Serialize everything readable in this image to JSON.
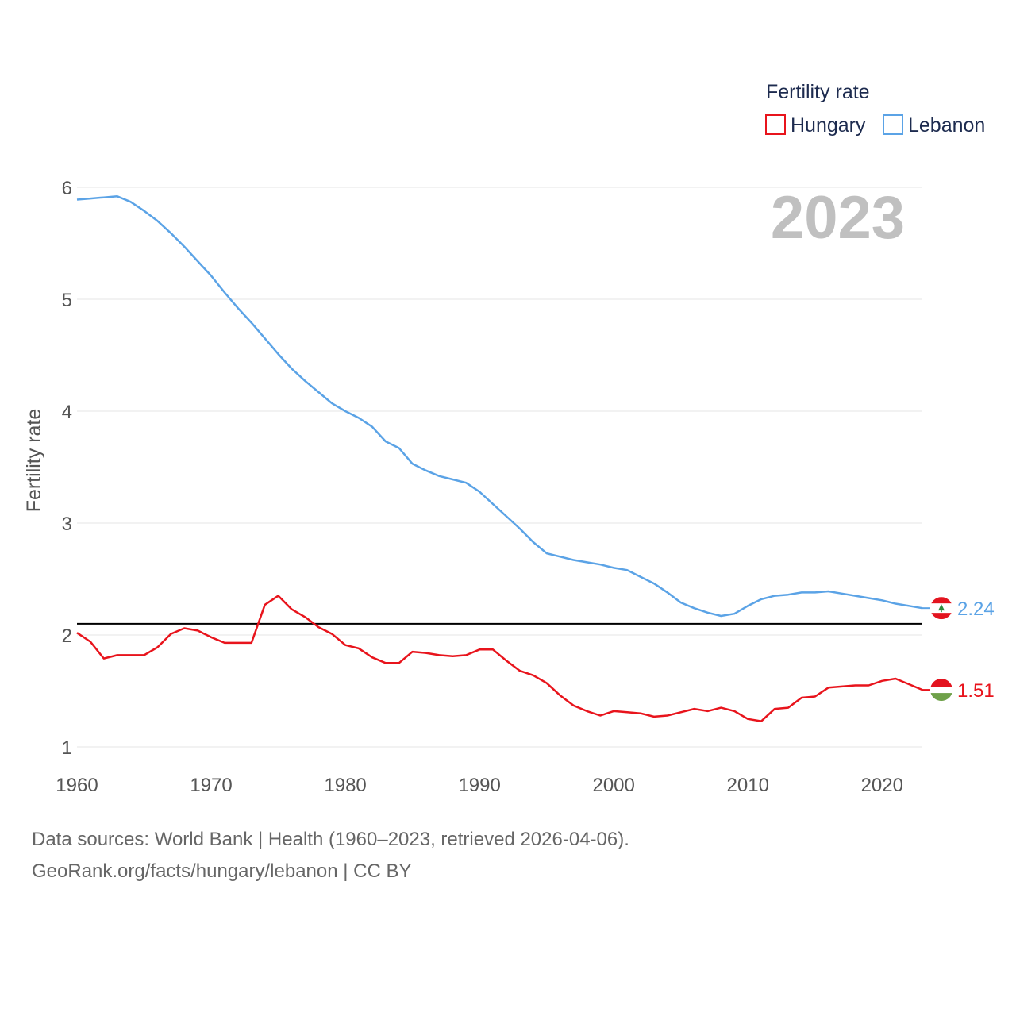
{
  "legend": {
    "title": "Fertility rate",
    "items": [
      {
        "label": "Hungary",
        "color": "#e8141c"
      },
      {
        "label": "Lebanon",
        "color": "#5ba3e6"
      }
    ]
  },
  "year_label": "2023",
  "footer": {
    "sources": "Data sources: World Bank | Health (1960–2023, retrieved 2026-04-06).",
    "credit": "GeoRank.org/facts/hungary/lebanon | CC BY"
  },
  "chart_data": {
    "type": "line",
    "title": "",
    "xlabel": "",
    "ylabel": "Fertility rate",
    "xlim": [
      1960,
      2023
    ],
    "ylim": [
      1,
      6
    ],
    "x_ticks": [
      "1960",
      "1970",
      "1980",
      "1990",
      "2000",
      "2010",
      "2020"
    ],
    "y_ticks": [
      "1",
      "2",
      "3",
      "4",
      "5",
      "6"
    ],
    "reference_line": 2.1,
    "x": [
      1960,
      1961,
      1962,
      1963,
      1964,
      1965,
      1966,
      1967,
      1968,
      1969,
      1970,
      1971,
      1972,
      1973,
      1974,
      1975,
      1976,
      1977,
      1978,
      1979,
      1980,
      1981,
      1982,
      1983,
      1984,
      1985,
      1986,
      1987,
      1988,
      1989,
      1990,
      1991,
      1992,
      1993,
      1994,
      1995,
      1996,
      1997,
      1998,
      1999,
      2000,
      2001,
      2002,
      2003,
      2004,
      2005,
      2006,
      2007,
      2008,
      2009,
      2010,
      2011,
      2012,
      2013,
      2014,
      2015,
      2016,
      2017,
      2018,
      2019,
      2020,
      2021,
      2022,
      2023
    ],
    "series": [
      {
        "name": "Hungary",
        "color": "#e8141c",
        "end_label": "1.51",
        "values": [
          2.02,
          1.94,
          1.79,
          1.82,
          1.82,
          1.82,
          1.89,
          2.01,
          2.06,
          2.04,
          1.98,
          1.93,
          1.93,
          1.93,
          2.27,
          2.35,
          2.23,
          2.16,
          2.07,
          2.01,
          1.91,
          1.88,
          1.8,
          1.75,
          1.75,
          1.85,
          1.84,
          1.82,
          1.81,
          1.82,
          1.87,
          1.87,
          1.77,
          1.68,
          1.64,
          1.57,
          1.46,
          1.37,
          1.32,
          1.28,
          1.32,
          1.31,
          1.3,
          1.27,
          1.28,
          1.31,
          1.34,
          1.32,
          1.35,
          1.32,
          1.25,
          1.23,
          1.34,
          1.35,
          1.44,
          1.45,
          1.53,
          1.54,
          1.55,
          1.55,
          1.59,
          1.61,
          1.56,
          1.51
        ]
      },
      {
        "name": "Lebanon",
        "color": "#5ba3e6",
        "end_label": "2.24",
        "values": [
          5.89,
          5.9,
          5.91,
          5.92,
          5.87,
          5.79,
          5.7,
          5.59,
          5.47,
          5.34,
          5.21,
          5.06,
          4.92,
          4.79,
          4.65,
          4.51,
          4.38,
          4.27,
          4.17,
          4.07,
          4.0,
          3.94,
          3.86,
          3.73,
          3.67,
          3.53,
          3.47,
          3.42,
          3.39,
          3.36,
          3.28,
          3.17,
          3.06,
          2.95,
          2.83,
          2.73,
          2.7,
          2.67,
          2.65,
          2.63,
          2.6,
          2.58,
          2.52,
          2.46,
          2.38,
          2.29,
          2.24,
          2.2,
          2.17,
          2.19,
          2.26,
          2.32,
          2.35,
          2.36,
          2.38,
          2.38,
          2.39,
          2.37,
          2.35,
          2.33,
          2.31,
          2.28,
          2.26,
          2.24
        ]
      }
    ]
  }
}
